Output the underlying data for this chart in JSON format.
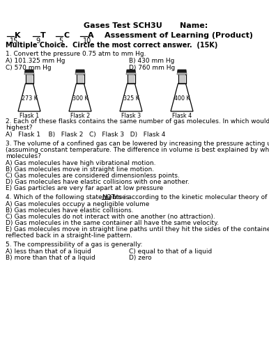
{
  "title": "Gases Test SCH3U",
  "name_label": "Name:",
  "scores": [
    "15",
    "9",
    "5",
    "10"
  ],
  "flask_labels": [
    "273 K",
    "300 K",
    "325 K",
    "400 K"
  ],
  "flask_names": [
    "Flask 1",
    "Flask 2",
    "Flask 3",
    "Flask 4"
  ],
  "bg_color": "#ffffff",
  "font_size": 6.5,
  "title_fontsize": 8.0,
  "header_fontsize": 7.0
}
